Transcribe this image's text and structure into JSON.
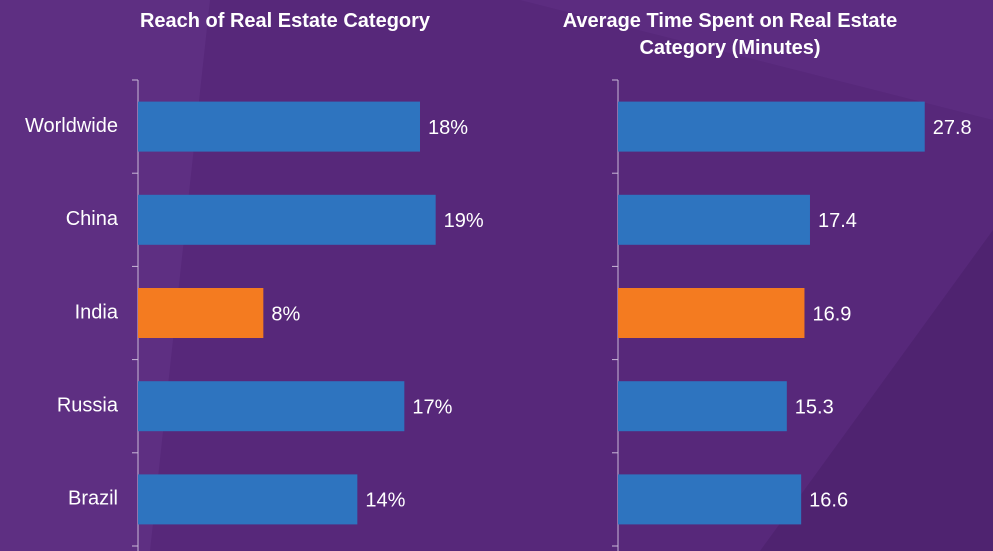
{
  "chart_data": [
    {
      "type": "bar",
      "orientation": "horizontal",
      "title": "Reach of Real Estate Category",
      "categories": [
        "Worldwide",
        "China",
        "India",
        "Russia",
        "Brazil"
      ],
      "values": [
        18,
        19,
        8,
        17,
        14
      ],
      "value_labels": [
        "18%",
        "19%",
        "8%",
        "17%",
        "14%"
      ],
      "colors": [
        "#2e74bf",
        "#2e74bf",
        "#f47b20",
        "#2e74bf",
        "#2e74bf"
      ],
      "xlim": [
        0,
        30
      ]
    },
    {
      "type": "bar",
      "orientation": "horizontal",
      "title": "Average Time Spent on Real Estate Category (Minutes)",
      "values": [
        27.8,
        17.4,
        16.9,
        15.3,
        16.6
      ],
      "colors": [
        "#2e74bf",
        "#2e74bf",
        "#f47b20",
        "#2e74bf",
        "#2e74bf"
      ],
      "xlim": [
        0,
        30
      ]
    }
  ]
}
